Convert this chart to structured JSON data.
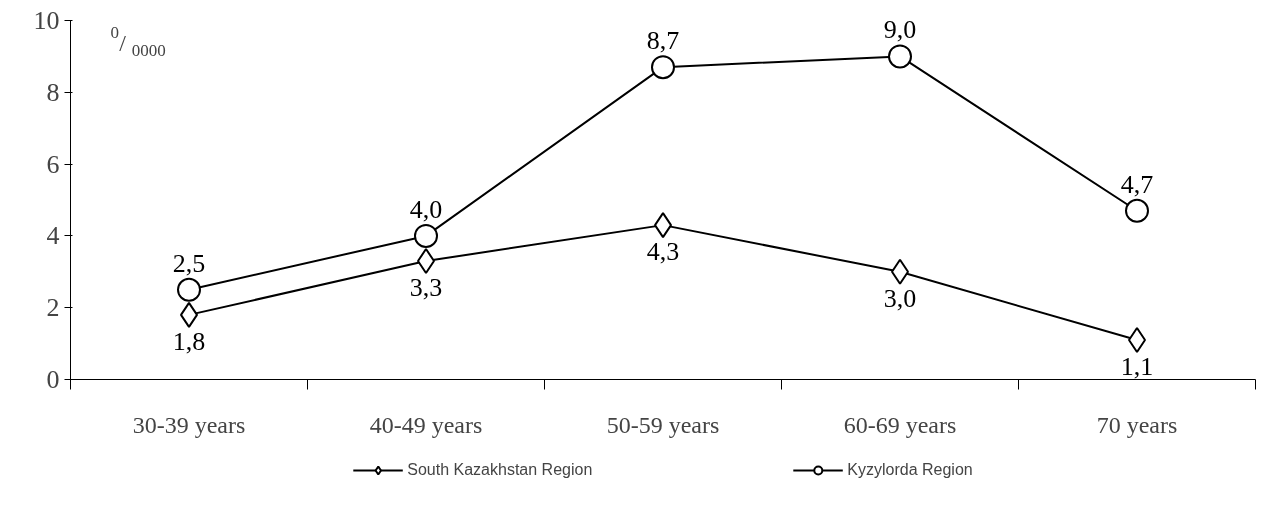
{
  "chart_data": {
    "type": "line",
    "ylabel": "$^{0}$/$_{0000}$",
    "categories": [
      "30-39 years",
      "40-49 years",
      "50-59 years",
      "60-69 years",
      "70 years"
    ],
    "series": [
      {
        "name": "South Kazakhstan Region",
        "color": "#000000",
        "marker": "diamond",
        "values": [
          1.8,
          3.3,
          4.3,
          3.0,
          1.1
        ],
        "value_labels": [
          "1,8",
          "3,3",
          "4,3",
          "3,0",
          "1,1"
        ]
      },
      {
        "name": "Kyzylorda Region",
        "color": "#000000",
        "marker": "circle",
        "values": [
          2.5,
          4.0,
          8.7,
          9.0,
          4.7
        ],
        "value_labels": [
          "2,5",
          "4,0",
          "8,7",
          "9,0",
          "4,7"
        ]
      }
    ],
    "ylim": [
      0,
      10
    ],
    "yticks": [
      0,
      2,
      4,
      6,
      8,
      10
    ],
    "grid": false,
    "legend": "bottom",
    "line_style": "solid"
  }
}
